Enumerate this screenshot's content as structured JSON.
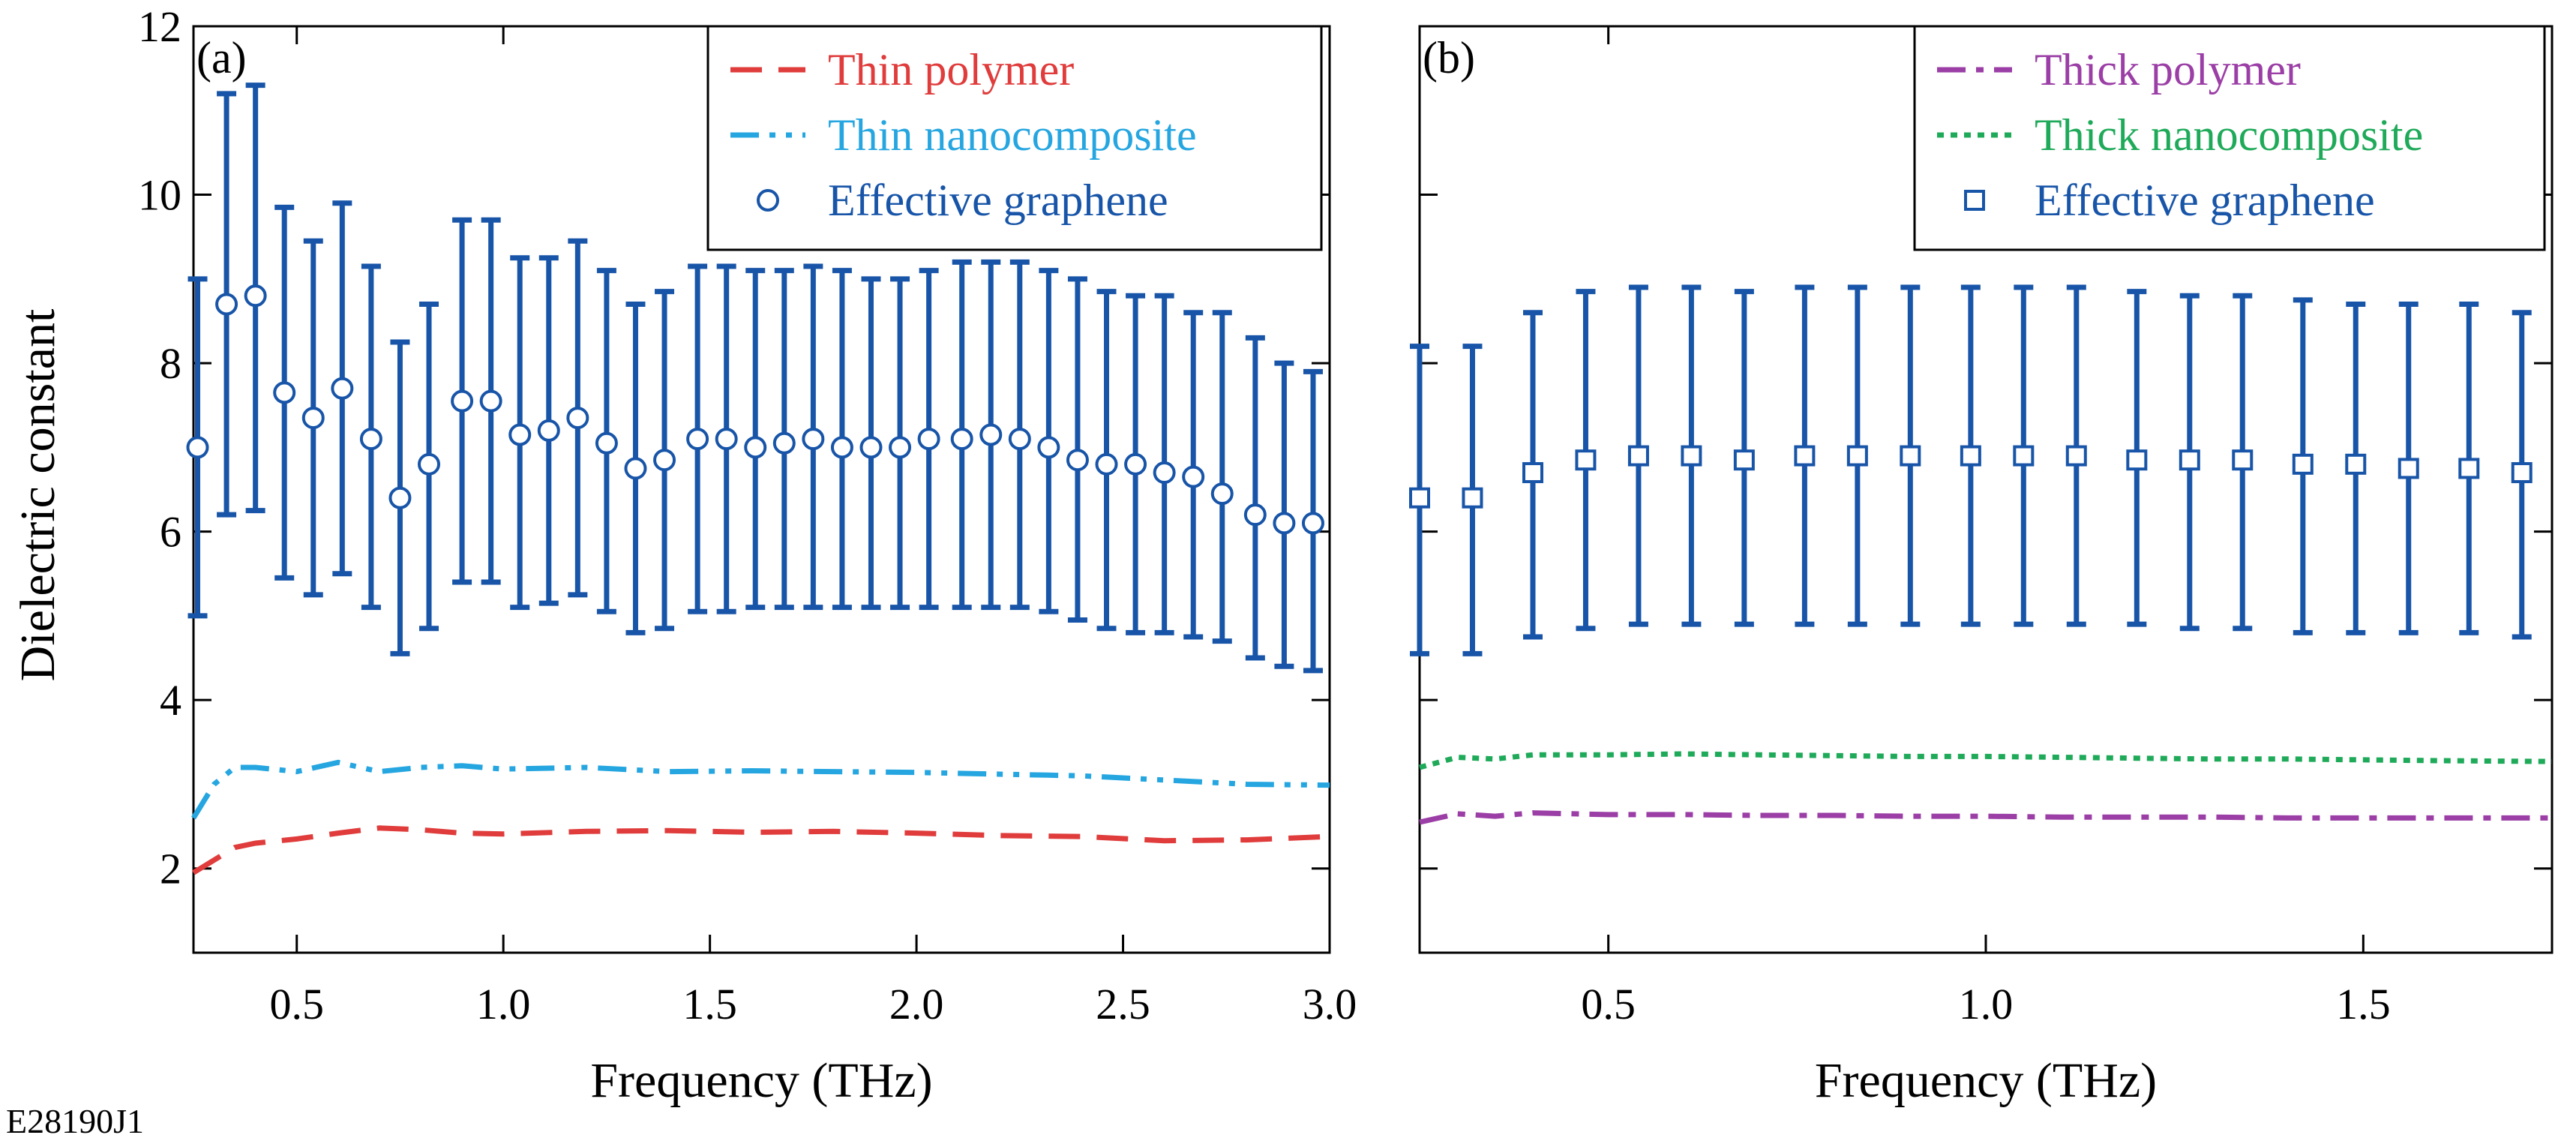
{
  "figure_id": "E28190J1",
  "colors": {
    "thin_polymer": "#e03c3c",
    "thin_nanocomposite": "#26a6e0",
    "thick_polymer": "#9b3ea6",
    "thick_nanocomposite": "#1faa5a",
    "graphene": "#1855a8",
    "axis": "#000000"
  },
  "chart_data": [
    {
      "panel": "(a)",
      "type": "line",
      "xlabel": "Frequency (THz)",
      "ylabel": "Dielectric constant",
      "xlim": [
        0.25,
        3.0
      ],
      "ylim": [
        1,
        12
      ],
      "xticks": [
        0.5,
        1.0,
        1.5,
        2.0,
        2.5,
        3.0
      ],
      "xtick_labels": [
        "0.5",
        "1.0",
        "1.5",
        "2.0",
        "2.5",
        "3.0"
      ],
      "yticks": [
        2,
        4,
        6,
        8,
        10,
        12
      ],
      "ytick_labels": [
        "2",
        "4",
        "6",
        "8",
        "10",
        "12"
      ],
      "legend_position": "top-right",
      "series": [
        {
          "name": "Thin polymer",
          "style": "dashed",
          "color_key": "thin_polymer",
          "x": [
            0.25,
            0.3,
            0.35,
            0.4,
            0.5,
            0.6,
            0.7,
            0.8,
            0.9,
            1.0,
            1.2,
            1.4,
            1.6,
            1.8,
            2.0,
            2.2,
            2.4,
            2.6,
            2.8,
            3.0
          ],
          "values": [
            1.95,
            2.1,
            2.25,
            2.3,
            2.35,
            2.42,
            2.48,
            2.46,
            2.42,
            2.41,
            2.44,
            2.45,
            2.43,
            2.44,
            2.42,
            2.39,
            2.38,
            2.33,
            2.34,
            2.38
          ]
        },
        {
          "name": "Thin nanocomposite",
          "style": "dash-dot-dot",
          "color_key": "thin_nanocomposite",
          "x": [
            0.25,
            0.3,
            0.35,
            0.4,
            0.5,
            0.6,
            0.7,
            0.8,
            0.9,
            1.0,
            1.2,
            1.4,
            1.6,
            1.8,
            2.0,
            2.2,
            2.4,
            2.6,
            2.8,
            3.0
          ],
          "values": [
            2.6,
            3.0,
            3.2,
            3.2,
            3.15,
            3.26,
            3.15,
            3.2,
            3.22,
            3.18,
            3.2,
            3.15,
            3.16,
            3.15,
            3.14,
            3.12,
            3.1,
            3.05,
            3.0,
            2.99
          ]
        },
        {
          "name": "Effective graphene",
          "style": "circle-markers-with-errorbars",
          "color_key": "graphene",
          "x": [
            0.26,
            0.33,
            0.4,
            0.47,
            0.54,
            0.61,
            0.68,
            0.75,
            0.82,
            0.9,
            0.97,
            1.04,
            1.11,
            1.18,
            1.25,
            1.32,
            1.39,
            1.47,
            1.54,
            1.61,
            1.68,
            1.75,
            1.82,
            1.89,
            1.96,
            2.03,
            2.11,
            2.18,
            2.25,
            2.32,
            2.39,
            2.46,
            2.53,
            2.6,
            2.67,
            2.74,
            2.82,
            2.89,
            2.96
          ],
          "values": [
            7.0,
            8.7,
            8.8,
            7.65,
            7.35,
            7.7,
            7.1,
            6.4,
            6.8,
            7.55,
            7.55,
            7.15,
            7.2,
            7.35,
            7.05,
            6.75,
            6.85,
            7.1,
            7.1,
            7.0,
            7.05,
            7.1,
            7.0,
            7.0,
            7.0,
            7.1,
            7.1,
            7.15,
            7.1,
            7.0,
            6.85,
            6.8,
            6.8,
            6.7,
            6.65,
            6.45,
            6.2,
            6.1,
            6.1
          ],
          "err_low": [
            5.0,
            6.2,
            6.25,
            5.45,
            5.25,
            5.5,
            5.1,
            4.55,
            4.85,
            5.4,
            5.4,
            5.1,
            5.15,
            5.25,
            5.05,
            4.8,
            4.85,
            5.05,
            5.05,
            5.1,
            5.1,
            5.1,
            5.1,
            5.1,
            5.1,
            5.1,
            5.1,
            5.1,
            5.1,
            5.05,
            4.95,
            4.85,
            4.8,
            4.8,
            4.75,
            4.7,
            4.5,
            4.4,
            4.35
          ],
          "err_high": [
            9.0,
            11.2,
            11.3,
            9.85,
            9.45,
            9.9,
            9.15,
            8.25,
            8.7,
            9.7,
            9.7,
            9.25,
            9.25,
            9.45,
            9.1,
            8.7,
            8.85,
            9.15,
            9.15,
            9.1,
            9.1,
            9.15,
            9.1,
            9.0,
            9.0,
            9.1,
            9.2,
            9.2,
            9.2,
            9.1,
            9.0,
            8.85,
            8.8,
            8.8,
            8.6,
            8.6,
            8.3,
            8.0,
            7.9
          ]
        }
      ]
    },
    {
      "panel": "(b)",
      "type": "line",
      "xlabel": "Frequency (THz)",
      "ylabel": "",
      "xlim": [
        0.25,
        1.75
      ],
      "ylim": [
        1,
        12
      ],
      "xticks": [
        0.5,
        1.0,
        1.5
      ],
      "xtick_labels": [
        "0.5",
        "1.0",
        "1.5"
      ],
      "yticks": [
        2,
        4,
        6,
        8,
        10,
        12
      ],
      "legend_position": "top-right",
      "series": [
        {
          "name": "Thick polymer",
          "style": "dash-dot",
          "color_key": "thick_polymer",
          "x": [
            0.25,
            0.3,
            0.35,
            0.4,
            0.5,
            0.6,
            0.7,
            0.8,
            0.9,
            1.0,
            1.1,
            1.2,
            1.3,
            1.4,
            1.5,
            1.6,
            1.75
          ],
          "values": [
            2.55,
            2.65,
            2.62,
            2.66,
            2.64,
            2.64,
            2.63,
            2.63,
            2.62,
            2.62,
            2.61,
            2.61,
            2.61,
            2.6,
            2.6,
            2.6,
            2.6
          ]
        },
        {
          "name": "Thick nanocomposite",
          "style": "dotted",
          "color_key": "thick_nanocomposite",
          "x": [
            0.25,
            0.3,
            0.35,
            0.4,
            0.5,
            0.6,
            0.7,
            0.8,
            0.9,
            1.0,
            1.1,
            1.2,
            1.3,
            1.4,
            1.5,
            1.6,
            1.75
          ],
          "values": [
            3.2,
            3.32,
            3.3,
            3.35,
            3.35,
            3.36,
            3.35,
            3.34,
            3.33,
            3.33,
            3.32,
            3.31,
            3.3,
            3.3,
            3.29,
            3.28,
            3.27
          ]
        },
        {
          "name": "Effective graphene",
          "style": "square-markers-with-errorbars",
          "color_key": "graphene",
          "x": [
            0.25,
            0.32,
            0.4,
            0.47,
            0.54,
            0.61,
            0.68,
            0.76,
            0.83,
            0.9,
            0.98,
            1.05,
            1.12,
            1.2,
            1.27,
            1.34,
            1.42,
            1.49,
            1.56,
            1.64,
            1.71
          ],
          "values": [
            6.4,
            6.4,
            6.7,
            6.85,
            6.9,
            6.9,
            6.85,
            6.9,
            6.9,
            6.9,
            6.9,
            6.9,
            6.9,
            6.85,
            6.85,
            6.85,
            6.8,
            6.8,
            6.75,
            6.75,
            6.7
          ],
          "err_low": [
            4.55,
            4.55,
            4.75,
            4.85,
            4.9,
            4.9,
            4.9,
            4.9,
            4.9,
            4.9,
            4.9,
            4.9,
            4.9,
            4.9,
            4.85,
            4.85,
            4.8,
            4.8,
            4.8,
            4.8,
            4.75
          ],
          "err_high": [
            8.2,
            8.2,
            8.6,
            8.85,
            8.9,
            8.9,
            8.85,
            8.9,
            8.9,
            8.9,
            8.9,
            8.9,
            8.9,
            8.85,
            8.8,
            8.8,
            8.75,
            8.7,
            8.7,
            8.7,
            8.6
          ]
        }
      ]
    }
  ]
}
